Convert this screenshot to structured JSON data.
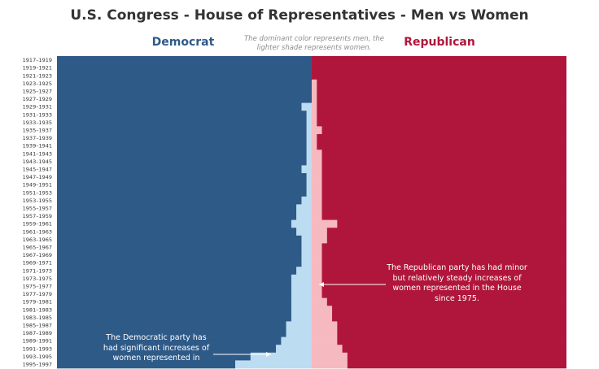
{
  "title": "U.S. Congress - House of Representatives - Men vs Women",
  "note": "The dominant color represents men, the lighter shade represents women.",
  "colors": {
    "dem_men": "#2e5a88",
    "dem_women": "#bcdcf1",
    "rep_men": "#b0163b",
    "rep_women": "#f7b9c0",
    "arrow": "#ffffff"
  },
  "annotations": {
    "republican": "The Republican party has had minor but relatively steady increases of women represented in the House since 1975.",
    "democrat": "The Democratic party has had significant increases of women represented in"
  },
  "chart_data": {
    "type": "bar",
    "orientation": "horizontal",
    "stacked": true,
    "series_names": [
      "Democrat",
      "Republican"
    ],
    "categories": [
      "1917–1919",
      "1919–1921",
      "1921–1923",
      "1923–1925",
      "1925–1927",
      "1927–1929",
      "1929–1931",
      "1931–1933",
      "1933–1935",
      "1935–1937",
      "1937–1939",
      "1939–1941",
      "1941–1943",
      "1943–1945",
      "1945–1947",
      "1947–1949",
      "1949–1951",
      "1951–1953",
      "1953–1955",
      "1955–1957",
      "1957–1959",
      "1959–1961",
      "1961–1963",
      "1963–1965",
      "1965–1967",
      "1967–1969",
      "1969–1971",
      "1971–1973",
      "1973–1975",
      "1975–1977",
      "1977–1979",
      "1979–1981",
      "1981–1983",
      "1983–1985",
      "1985–1987",
      "1987–1989",
      "1989–1991",
      "1991–1993",
      "1993–1995",
      "1995–1997"
    ],
    "dem_women_share": [
      0.0,
      0.0,
      0.0,
      0.0,
      0.0,
      0.0,
      0.02,
      0.01,
      0.01,
      0.01,
      0.01,
      0.01,
      0.01,
      0.01,
      0.02,
      0.01,
      0.01,
      0.01,
      0.02,
      0.03,
      0.03,
      0.04,
      0.03,
      0.02,
      0.02,
      0.02,
      0.02,
      0.03,
      0.04,
      0.04,
      0.04,
      0.04,
      0.04,
      0.04,
      0.05,
      0.05,
      0.06,
      0.07,
      0.12,
      0.15
    ],
    "rep_women_share": [
      0.0,
      0.0,
      0.0,
      0.01,
      0.01,
      0.01,
      0.01,
      0.01,
      0.01,
      0.02,
      0.01,
      0.01,
      0.02,
      0.02,
      0.02,
      0.02,
      0.02,
      0.02,
      0.02,
      0.02,
      0.02,
      0.05,
      0.03,
      0.03,
      0.02,
      0.02,
      0.02,
      0.02,
      0.02,
      0.02,
      0.02,
      0.03,
      0.04,
      0.04,
      0.05,
      0.05,
      0.05,
      0.06,
      0.07,
      0.07
    ],
    "dem_total_share": [
      0.5,
      0.5,
      0.5,
      0.5,
      0.5,
      0.5,
      0.5,
      0.5,
      0.5,
      0.5,
      0.5,
      0.5,
      0.5,
      0.5,
      0.5,
      0.5,
      0.5,
      0.5,
      0.5,
      0.5,
      0.5,
      0.5,
      0.5,
      0.5,
      0.5,
      0.5,
      0.5,
      0.5,
      0.5,
      0.5,
      0.5,
      0.5,
      0.5,
      0.5,
      0.5,
      0.5,
      0.5,
      0.5,
      0.5,
      0.5
    ]
  }
}
